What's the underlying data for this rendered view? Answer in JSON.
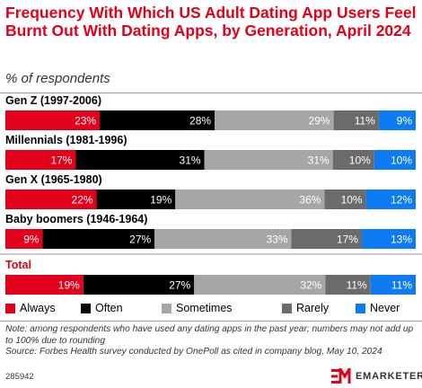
{
  "title": "Frequency With Which US Adult Dating App Users Feel Burnt Out With Dating Apps, by Generation, April 2024",
  "subtitle": "% of respondents",
  "chart_data": {
    "type": "bar",
    "orientation": "horizontal",
    "stacked": true,
    "categories": [
      "Gen Z (1997-2006)",
      "Millennials (1981-1996)",
      "Gen X (1965-1980)",
      "Baby boomers (1946-1964)",
      "Total"
    ],
    "series": [
      {
        "name": "Always",
        "color": "#e2001a",
        "values": [
          23,
          17,
          22,
          9,
          19
        ]
      },
      {
        "name": "Often",
        "color": "#000000",
        "values": [
          28,
          31,
          19,
          27,
          27
        ]
      },
      {
        "name": "Sometimes",
        "color": "#a6a6a6",
        "values": [
          29,
          31,
          36,
          33,
          32
        ]
      },
      {
        "name": "Rarely",
        "color": "#6b6b6b",
        "values": [
          11,
          10,
          10,
          17,
          11
        ]
      },
      {
        "name": "Never",
        "color": "#0d7cf2",
        "values": [
          9,
          10,
          12,
          13,
          11
        ]
      }
    ],
    "highlight_category_color": "#e2001a",
    "value_suffix": "%",
    "legend_position": "bottom"
  },
  "note": "Note: among respondents who have used any dating apps in the past year; numbers may not add up to 100% due to rounding",
  "source": "Source: Forbes Health survey conducted by OnePoll as cited in company blog, May 10, 2024",
  "chart_id": "285942",
  "brand": {
    "name": "EMARKETER",
    "logo_icon": "emarketer-logo-icon",
    "color": "#e2001a"
  }
}
